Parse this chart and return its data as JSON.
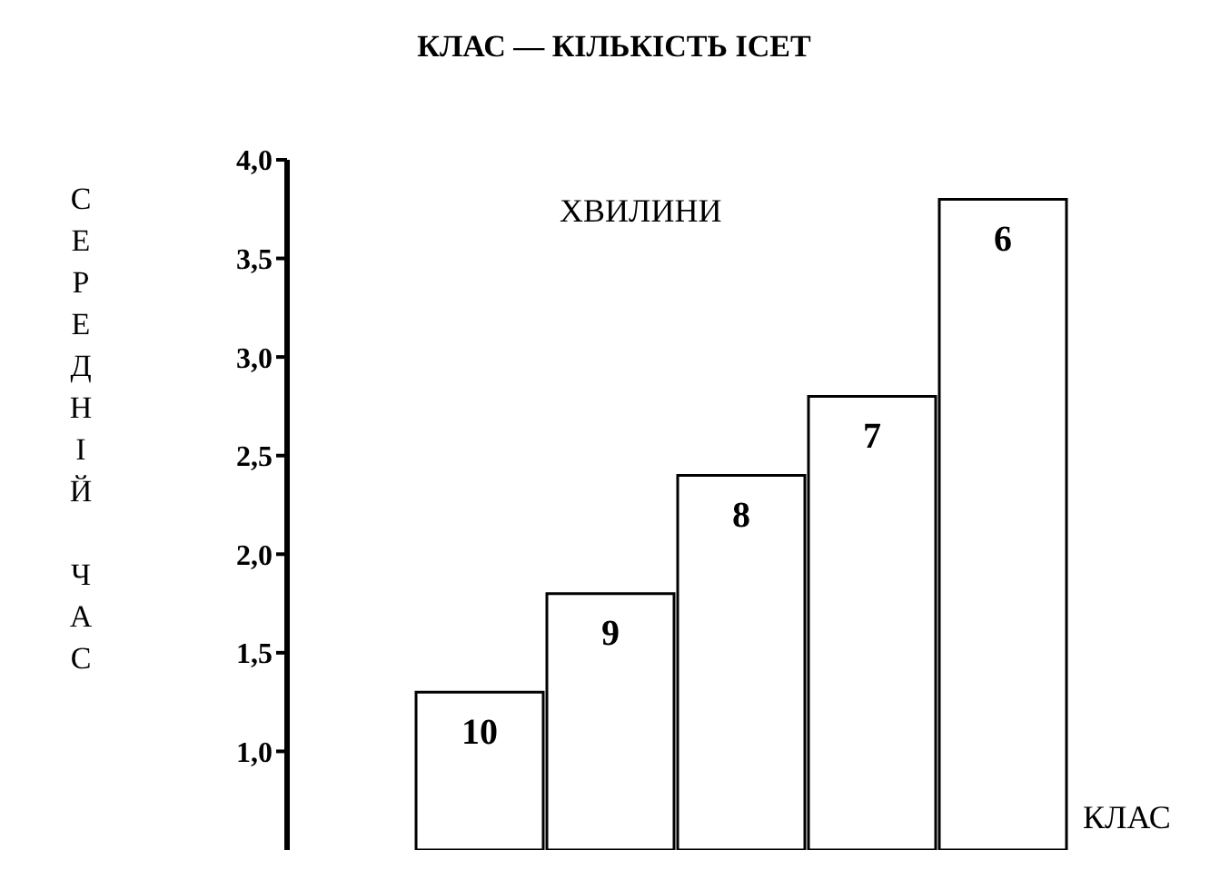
{
  "chart_data": {
    "type": "bar",
    "title": "КЛАС — КІЛЬКІСТЬ ІСЕТ",
    "xlabel": "КЛАС",
    "ylabel": "СЕРЕДНІЙ ЧАС",
    "annotations": [
      "ХВИЛИНИ"
    ],
    "categories": [
      "10",
      "9",
      "8",
      "7",
      "6"
    ],
    "values": [
      1.3,
      1.8,
      2.4,
      2.8,
      3.8
    ],
    "color": "#ffffff",
    "ylim": [
      0.5,
      4
    ],
    "yticks": [
      {
        "value": 1,
        "label": "1,0"
      },
      {
        "value": 1.5,
        "label": "1,5"
      },
      {
        "value": 2,
        "label": "2,0"
      },
      {
        "value": 2.5,
        "label": "2,5"
      },
      {
        "value": 3,
        "label": "3,0"
      },
      {
        "value": 3.5,
        "label": "3,5"
      },
      {
        "value": 4,
        "label": "4,0"
      }
    ],
    "grid": false,
    "legend": false
  }
}
